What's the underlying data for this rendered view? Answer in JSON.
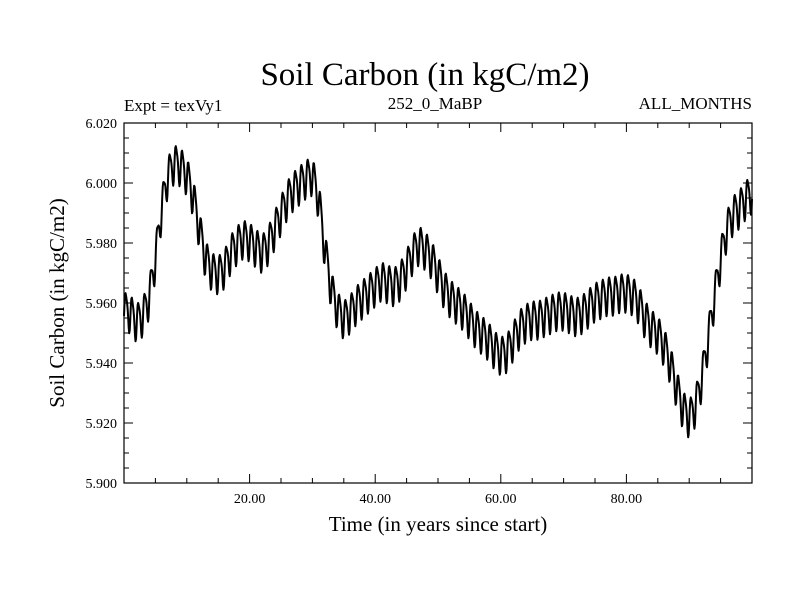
{
  "chart_data": {
    "type": "line",
    "title": "Soil Carbon (in kgC/m2)",
    "subtitle_left": "Expt = texVy1",
    "subtitle_center": "252_0_MaBP",
    "subtitle_right": "ALL_MONTHS",
    "xlabel": "Time (in years since start)",
    "ylabel": "Soil Carbon (in kgC/m2)",
    "xlim": [
      0,
      100
    ],
    "ylim": [
      5.9,
      6.02
    ],
    "xticks": [
      20,
      40,
      60,
      80
    ],
    "xtick_labels": [
      "20.00",
      "40.00",
      "60.00",
      "80.00"
    ],
    "yticks": [
      5.9,
      5.92,
      5.94,
      5.96,
      5.98,
      6.0,
      6.02
    ],
    "ytick_labels": [
      "5.900",
      "5.920",
      "5.940",
      "5.960",
      "5.980",
      "6.000",
      "6.020"
    ],
    "grid": false,
    "series": [
      {
        "name": "Soil Carbon",
        "seasonal_cycle": "monthly oscillation with amplitude of about 0.006 kgC/m2 around the annual-mean envelope",
        "x": [
          0,
          1,
          2,
          3,
          4,
          5,
          6,
          7,
          8,
          9,
          10,
          11,
          12,
          13,
          14,
          15,
          16,
          17,
          18,
          19,
          20,
          21,
          22,
          23,
          24,
          25,
          26,
          27,
          28,
          29,
          30,
          31,
          32,
          33,
          34,
          35,
          36,
          37,
          38,
          39,
          40,
          41,
          42,
          43,
          44,
          45,
          46,
          47,
          48,
          49,
          50,
          51,
          52,
          53,
          54,
          55,
          56,
          57,
          58,
          59,
          60,
          61,
          62,
          63,
          64,
          65,
          66,
          67,
          68,
          69,
          70,
          71,
          72,
          73,
          74,
          75,
          76,
          77,
          78,
          79,
          80,
          81,
          82,
          83,
          84,
          85,
          86,
          87,
          88,
          89,
          90,
          91,
          92,
          93,
          94,
          95,
          96,
          97,
          98,
          99,
          100
        ],
        "y": [
          5.958,
          5.957,
          5.954,
          5.956,
          5.962,
          5.975,
          5.992,
          6.003,
          6.007,
          6.006,
          6.003,
          5.996,
          5.985,
          5.975,
          5.971,
          5.97,
          5.972,
          5.977,
          5.98,
          5.982,
          5.981,
          5.979,
          5.977,
          5.98,
          5.985,
          5.99,
          5.995,
          5.998,
          6.0,
          6.002,
          6.003,
          5.995,
          5.978,
          5.965,
          5.958,
          5.955,
          5.957,
          5.96,
          5.962,
          5.964,
          5.966,
          5.968,
          5.967,
          5.966,
          5.968,
          5.972,
          5.977,
          5.98,
          5.978,
          5.975,
          5.97,
          5.965,
          5.962,
          5.96,
          5.958,
          5.955,
          5.952,
          5.95,
          5.948,
          5.945,
          5.943,
          5.944,
          5.948,
          5.952,
          5.954,
          5.955,
          5.955,
          5.956,
          5.957,
          5.958,
          5.958,
          5.957,
          5.956,
          5.957,
          5.959,
          5.961,
          5.962,
          5.963,
          5.963,
          5.964,
          5.964,
          5.963,
          5.96,
          5.955,
          5.952,
          5.95,
          5.946,
          5.94,
          5.932,
          5.925,
          5.922,
          5.926,
          5.935,
          5.948,
          5.962,
          5.975,
          5.985,
          5.99,
          5.992,
          5.995,
          5.997
        ]
      }
    ]
  }
}
